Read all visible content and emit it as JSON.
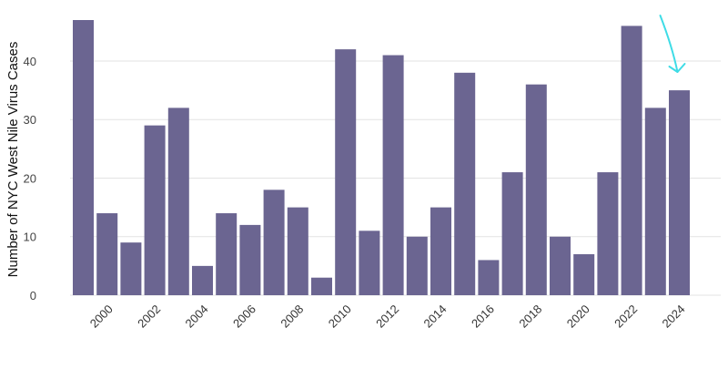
{
  "chart_data": {
    "type": "bar",
    "title": "",
    "xlabel": "",
    "ylabel": "Number of NYC West Nile Virus Cases",
    "x": [
      1999,
      2000,
      2001,
      2002,
      2003,
      2004,
      2005,
      2006,
      2007,
      2008,
      2009,
      2010,
      2011,
      2012,
      2013,
      2014,
      2015,
      2016,
      2017,
      2018,
      2019,
      2020,
      2021,
      2022,
      2023,
      2024
    ],
    "values": [
      47,
      14,
      9,
      29,
      32,
      5,
      14,
      12,
      18,
      15,
      3,
      42,
      11,
      41,
      10,
      15,
      38,
      6,
      21,
      36,
      10,
      7,
      21,
      46,
      32,
      35
    ],
    "xticks": [
      "2000",
      "2002",
      "2004",
      "2006",
      "2008",
      "2010",
      "2012",
      "2014",
      "2016",
      "2018",
      "2020",
      "2022",
      "2024"
    ],
    "yticks": [
      0,
      10,
      20,
      30,
      40
    ],
    "ylim": [
      0,
      47
    ],
    "grid": "horizontal",
    "legend": "none",
    "bar_color": "#6b6591",
    "annotation": {
      "type": "arrow",
      "target_x": 2024,
      "color": "#3fdce6"
    }
  }
}
